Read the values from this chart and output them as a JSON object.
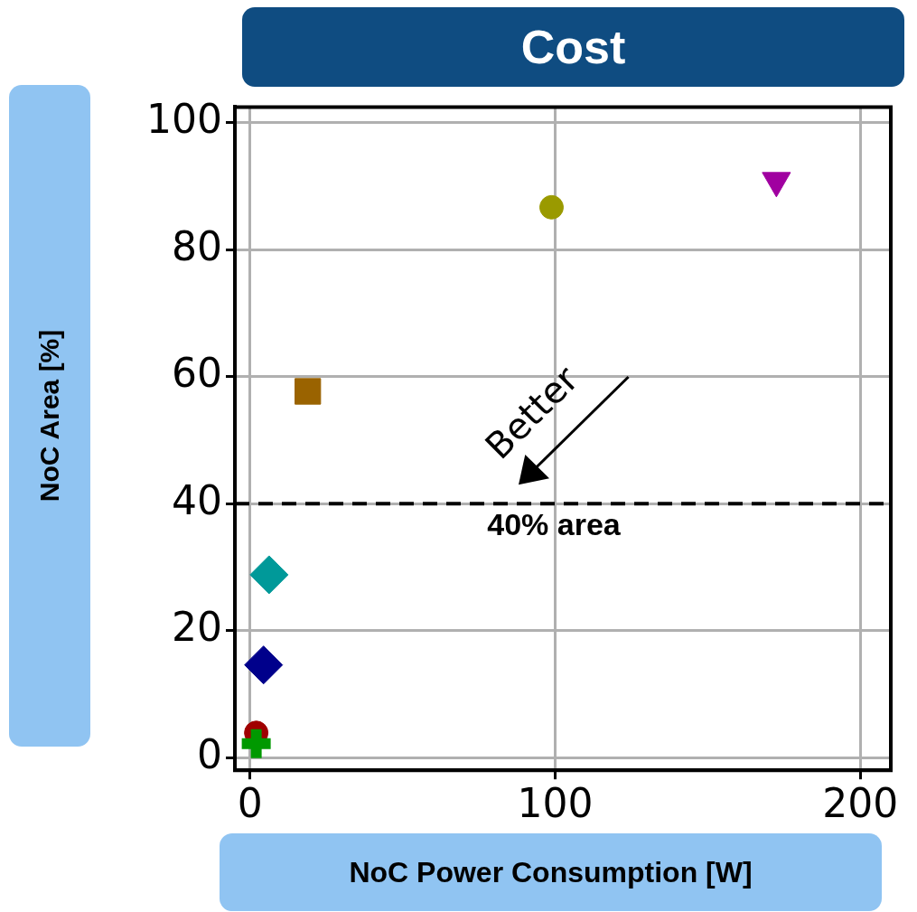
{
  "chart_data": {
    "type": "scatter",
    "title": "Cost",
    "xlabel": "NoC Power Consumption [W]",
    "ylabel": "NoC Area [%]",
    "series": [
      {
        "color": "#a000a0",
        "x": [
          172.5
        ],
        "values": [
          90.9
        ],
        "marker": "triangle"
      },
      {
        "color": "#9a9a00",
        "x": [
          98.8
        ],
        "values": [
          86.7
        ],
        "marker": "circle"
      },
      {
        "color": "#9a6300",
        "x": [
          18.9
        ],
        "values": [
          57.7
        ],
        "marker": "square"
      },
      {
        "color": "#009999",
        "x": [
          6.2
        ],
        "values": [
          28.8
        ],
        "marker": "diamond"
      },
      {
        "color": "#00008b",
        "x": [
          4.4
        ],
        "values": [
          14.6
        ],
        "marker": "diamond"
      },
      {
        "color": "#a00000",
        "x": [
          2
        ],
        "values": [
          3.9
        ],
        "marker": "circle"
      },
      {
        "color": "#009900",
        "x": [
          2
        ],
        "values": [
          2.2
        ],
        "marker": "cross"
      }
    ],
    "xlim": [
      -5,
      210
    ],
    "xticks": [
      0,
      100,
      200
    ],
    "ylim": [
      -2,
      102.5
    ],
    "yticks": [
      0,
      20,
      40,
      60,
      80,
      100
    ],
    "grid": true,
    "legend": false,
    "ref_lines": [
      {
        "axis": "y",
        "value": 40,
        "label": "40% area",
        "color": "#000000",
        "line_style": "dashed"
      }
    ],
    "annotations": [
      "Better"
    ]
  }
}
